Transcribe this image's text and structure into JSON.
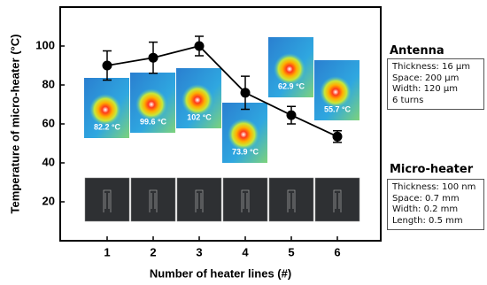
{
  "chart_data": {
    "type": "errorline",
    "x_label": "Number of heater lines (#)",
    "y_label": "Temperature of micro-heater (°C)",
    "categories": [
      "1",
      "2",
      "3",
      "4",
      "5",
      "6"
    ],
    "values": [
      90,
      94,
      100,
      76,
      64.5,
      53.5
    ],
    "errors": [
      7.5,
      8,
      5,
      8.5,
      4.5,
      3
    ],
    "color": "#000000",
    "ylim": [
      0,
      120
    ],
    "yticks": [
      20,
      40,
      60,
      80,
      100
    ],
    "thermal_labels": [
      "82.2 °C",
      "99.6 °C",
      "102 °C",
      "73.9 °C",
      "62.9 °C",
      "55.7 °C"
    ]
  },
  "antenna": {
    "title": "Antenna",
    "lines": [
      "Thickness: 16 µm",
      "Space: 200 µm",
      "Width: 120 µm",
      "6 turns"
    ]
  },
  "micro_heater": {
    "title": "Micro-heater",
    "lines": [
      "Thickness: 100 nm",
      "Space: 0.7 mm",
      "Width: 0.2 mm",
      "Length: 0.5 mm"
    ]
  }
}
